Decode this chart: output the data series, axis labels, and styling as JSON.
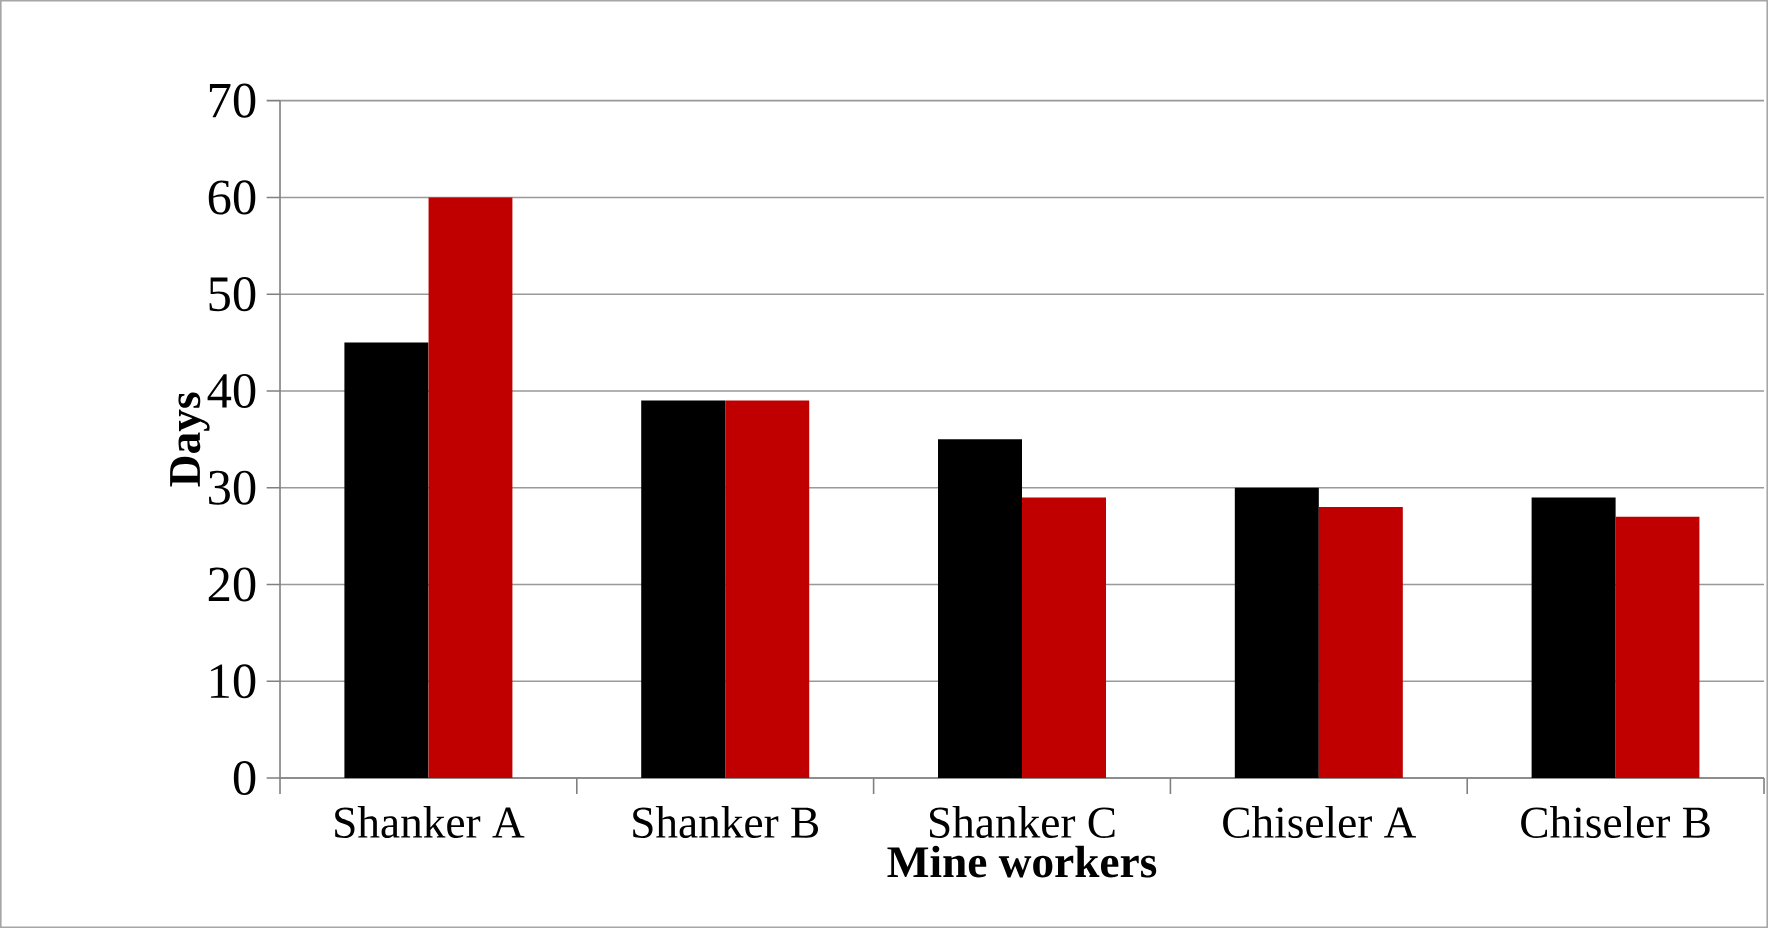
{
  "chart_data": {
    "type": "bar",
    "xlabel": "Mine workers",
    "ylabel": "Days",
    "categories": [
      "Shanker A",
      "Shanker B",
      "Shanker C",
      "Chiseler A",
      "Chiseler B"
    ],
    "series": [
      {
        "color": "#000000",
        "values": [
          45,
          39,
          35,
          30,
          29
        ]
      },
      {
        "color": "#c00000",
        "values": [
          60,
          39,
          29,
          28,
          27
        ]
      }
    ],
    "ylim": [
      0,
      70
    ],
    "yticks": [
      0,
      10,
      20,
      30,
      40,
      50,
      60,
      70
    ],
    "grid": "y"
  }
}
